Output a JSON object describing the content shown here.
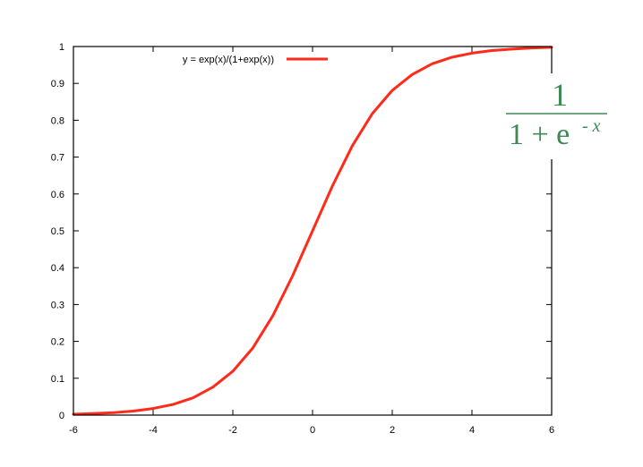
{
  "chart_data": {
    "type": "line",
    "title": "",
    "xlabel": "",
    "ylabel": "",
    "xlim": [
      -6,
      6
    ],
    "ylim": [
      0,
      1
    ],
    "grid": false,
    "legend_position": "top-left",
    "x_ticks": [
      "-6",
      "-4",
      "-2",
      "0",
      "2",
      "4",
      "6"
    ],
    "x_tick_values": [
      -6,
      -4,
      -2,
      0,
      2,
      4,
      6
    ],
    "y_ticks": [
      "0",
      "0.1",
      "0.2",
      "0.3",
      "0.4",
      "0.5",
      "0.6",
      "0.7",
      "0.8",
      "0.9",
      "1"
    ],
    "y_tick_values": [
      0,
      0.1,
      0.2,
      0.3,
      0.4,
      0.5,
      0.6,
      0.7,
      0.8,
      0.9,
      1
    ],
    "series": [
      {
        "name": "y = exp(x)/(1+exp(x))",
        "color": "#ff2a1a",
        "x": [
          -6,
          -5.5,
          -5,
          -4.5,
          -4,
          -3.5,
          -3,
          -2.5,
          -2,
          -1.5,
          -1,
          -0.5,
          0,
          0.5,
          1,
          1.5,
          2,
          2.5,
          3,
          3.5,
          4,
          4.5,
          5,
          5.5,
          6
        ],
        "y": [
          0.0025,
          0.0041,
          0.0067,
          0.011,
          0.018,
          0.029,
          0.047,
          0.076,
          0.119,
          0.182,
          0.269,
          0.378,
          0.5,
          0.622,
          0.731,
          0.818,
          0.881,
          0.924,
          0.953,
          0.971,
          0.982,
          0.989,
          0.993,
          0.996,
          0.998
        ]
      }
    ],
    "annotation": {
      "numerator": "1",
      "denominator_base": "1 + e",
      "denominator_exponent": "- x",
      "color": "#3d8a54"
    }
  }
}
